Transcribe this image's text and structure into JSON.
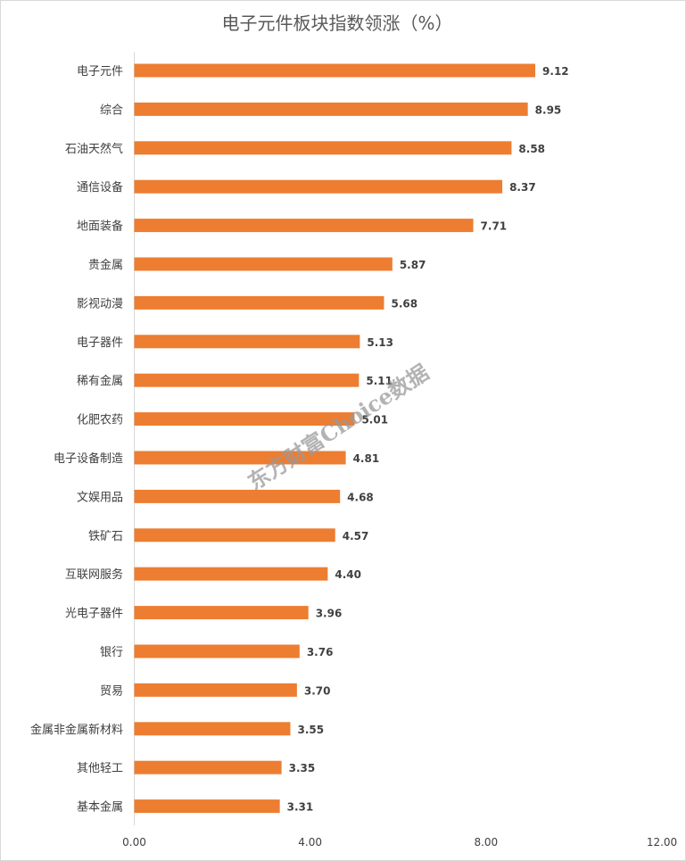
{
  "chart_data": {
    "type": "bar",
    "orientation": "horizontal",
    "title": "电子元件板块指数领涨（%）",
    "categories": [
      "电子元件",
      "综合",
      "石油天然气",
      "通信设备",
      "地面装备",
      "贵金属",
      "影视动漫",
      "电子器件",
      "稀有金属",
      "化肥农药",
      "电子设备制造",
      "文娱用品",
      "铁矿石",
      "互联网服务",
      "光电子器件",
      "银行",
      "贸易",
      "金属非金属新材料",
      "其他轻工",
      "基本金属"
    ],
    "values": [
      9.12,
      8.95,
      8.58,
      8.37,
      7.71,
      5.87,
      5.68,
      5.13,
      5.11,
      5.01,
      4.81,
      4.68,
      4.57,
      4.4,
      3.96,
      3.76,
      3.7,
      3.55,
      3.35,
      3.31
    ],
    "value_labels": [
      "9.12",
      "8.95",
      "8.58",
      "8.37",
      "7.71",
      "5.87",
      "5.68",
      "5.13",
      "5.11",
      "5.01",
      "4.81",
      "4.68",
      "4.57",
      "4.40",
      "3.96",
      "3.76",
      "3.70",
      "3.55",
      "3.35",
      "3.31"
    ],
    "xlim": [
      0,
      12
    ],
    "x_ticks": [
      "0.00",
      "4.00",
      "8.00",
      "12.00"
    ],
    "x_tick_values": [
      0,
      4,
      8,
      12
    ],
    "grid": false,
    "bar_color": "#ED7D31"
  },
  "watermark": "东方财富Choice数据"
}
